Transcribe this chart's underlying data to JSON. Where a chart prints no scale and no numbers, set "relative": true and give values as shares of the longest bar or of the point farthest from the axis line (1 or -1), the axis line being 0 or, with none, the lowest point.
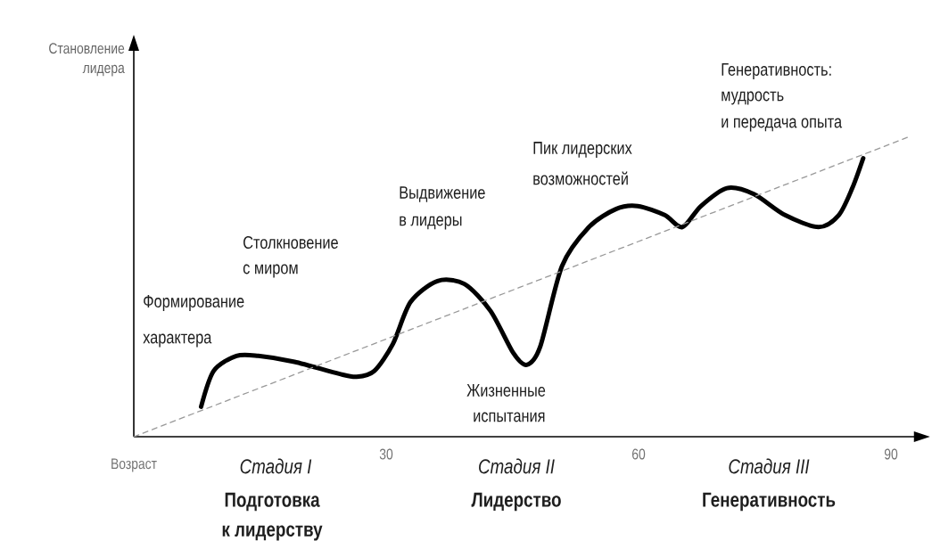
{
  "chart_data": {
    "type": "line",
    "relative": true,
    "ylabel": "Становление лидера",
    "xlabel": "Возраст",
    "xlim": [
      0,
      94
    ],
    "xticks": [
      30,
      60,
      90
    ],
    "series": [
      {
        "color": "#000000",
        "x": [
          8,
          9.5,
          12.2,
          14.8,
          19.1,
          24.4,
          26.5,
          28.6,
          30.8,
          32.9,
          36.1,
          39.3,
          42.4,
          45.1,
          46.7,
          48.3,
          50.9,
          54.1,
          57.3,
          59.9,
          63.1,
          65.2,
          67.4,
          70.5,
          73.7,
          77.4,
          81.4,
          83.8,
          85.4,
          86.7
        ],
        "values": [
          0.1,
          0.22,
          0.27,
          0.27,
          0.25,
          0.21,
          0.2,
          0.22,
          0.31,
          0.45,
          0.52,
          0.51,
          0.42,
          0.28,
          0.24,
          0.3,
          0.57,
          0.7,
          0.76,
          0.77,
          0.74,
          0.7,
          0.77,
          0.83,
          0.81,
          0.74,
          0.7,
          0.74,
          0.83,
          0.93
        ]
      },
      {
        "color": "#999999",
        "line_style": "dashed",
        "x": [
          0,
          92
        ],
        "values": [
          0,
          1
        ]
      }
    ],
    "annotations": [
      "Формирование",
      "характера",
      "Столкновение",
      "с миром",
      "Выдвижение",
      "в лидеры",
      "Пик лидерских",
      "возможностей",
      "Жизненные",
      "испытания",
      "Генеративность:",
      "мудрость",
      "и передача опыта",
      "Стадия I",
      "Стадия II",
      "Стадия III",
      "Подготовка",
      "к лидерству",
      "Лидерство",
      "Генеративность"
    ]
  }
}
